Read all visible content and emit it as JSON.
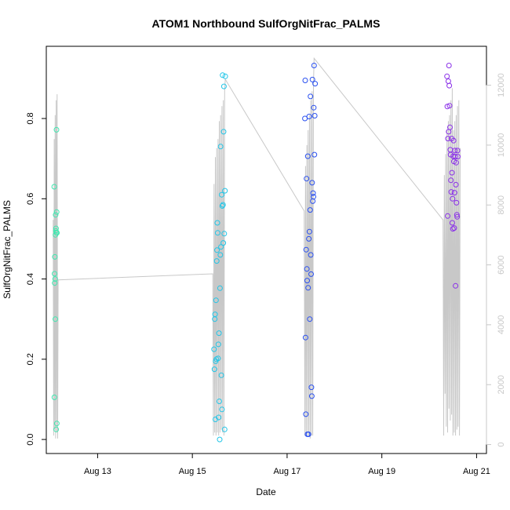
{
  "chart_data": {
    "type": "scatter",
    "title": "ATOM1 Northbound SulfOrgNitFrac_PALMS",
    "xlabel": "Date",
    "ylabel": "SulfOrgNitFrac_PALMS",
    "xlim": [
      "2016-08-11 22:00",
      "2016-08-21 05:00"
    ],
    "ylim": [
      -0.035,
      0.98
    ],
    "y2lim": [
      -300,
      13300
    ],
    "x_ticks": [
      {
        "value": "2016-08-13",
        "label": "Aug 13"
      },
      {
        "value": "2016-08-15",
        "label": "Aug 15"
      },
      {
        "value": "2016-08-17",
        "label": "Aug 17"
      },
      {
        "value": "2016-08-19",
        "label": "Aug 19"
      },
      {
        "value": "2016-08-21",
        "label": "Aug 21"
      }
    ],
    "y_ticks": [
      0.0,
      0.2,
      0.4,
      0.6,
      0.8
    ],
    "y_tick_labels": [
      "0.0",
      "0.2",
      "0.4",
      "0.6",
      "0.8"
    ],
    "y2_ticks": [
      0,
      2000,
      4000,
      6000,
      8000,
      10000,
      12000
    ],
    "y2_tick_labels": [
      "0",
      "2000",
      "4000",
      "6000",
      "8000",
      "10000",
      "12000"
    ],
    "y2_color": "#c8c8c8",
    "grid": false,
    "colors": {
      "flight1": "#3fe8b0",
      "flight2": "#22c6e8",
      "flight3": "#2a50f0",
      "flight4": "#8a30e8",
      "altitude": "#c8c8c8"
    },
    "series": [
      {
        "color_key": "flight1",
        "points": [
          [
            "2016-08-12 02:00",
            0.63
          ],
          [
            "2016-08-12 02:05",
            0.105
          ],
          [
            "2016-08-12 02:10",
            0.413
          ],
          [
            "2016-08-12 02:15",
            0.39
          ],
          [
            "2016-08-12 02:20",
            0.455
          ],
          [
            "2016-08-12 02:30",
            0.4
          ],
          [
            "2016-08-12 02:35",
            0.3
          ],
          [
            "2016-08-12 02:40",
            0.51
          ],
          [
            "2016-08-12 02:45",
            0.56
          ],
          [
            "2016-08-12 02:50",
            0.52
          ],
          [
            "2016-08-12 02:55",
            0.526
          ],
          [
            "2016-08-12 03:00",
            0.025
          ],
          [
            "2016-08-12 03:05",
            0.516
          ],
          [
            "2016-08-12 03:10",
            0.772
          ],
          [
            "2016-08-12 03:15",
            0.567
          ],
          [
            "2016-08-12 03:20",
            0.04
          ],
          [
            "2016-08-12 03:25",
            0.515
          ]
        ]
      },
      {
        "color_key": "flight2",
        "points": [
          [
            "2016-08-15 11:00",
            0.225
          ],
          [
            "2016-08-15 11:10",
            0.175
          ],
          [
            "2016-08-15 11:20",
            0.3
          ],
          [
            "2016-08-15 11:30",
            0.312
          ],
          [
            "2016-08-15 11:40",
            0.05
          ],
          [
            "2016-08-15 11:50",
            0.195
          ],
          [
            "2016-08-15 12:00",
            0.347
          ],
          [
            "2016-08-15 12:10",
            0.2
          ],
          [
            "2016-08-15 12:20",
            0.445
          ],
          [
            "2016-08-15 12:30",
            0.472
          ],
          [
            "2016-08-15 12:40",
            0.54
          ],
          [
            "2016-08-15 12:50",
            0.515
          ],
          [
            "2016-08-15 13:00",
            0.202
          ],
          [
            "2016-08-15 13:10",
            0.237
          ],
          [
            "2016-08-15 13:20",
            0.055
          ],
          [
            "2016-08-15 13:30",
            0.265
          ],
          [
            "2016-08-15 13:40",
            0.095
          ],
          [
            "2016-08-15 13:50",
            0.0
          ],
          [
            "2016-08-15 14:00",
            0.377
          ],
          [
            "2016-08-15 14:10",
            0.46
          ],
          [
            "2016-08-15 14:20",
            0.73
          ],
          [
            "2016-08-15 14:30",
            0.48
          ],
          [
            "2016-08-15 14:40",
            0.16
          ],
          [
            "2016-08-15 14:50",
            0.61
          ],
          [
            "2016-08-15 15:00",
            0.075
          ],
          [
            "2016-08-15 15:10",
            0.582
          ],
          [
            "2016-08-15 15:20",
            0.908
          ],
          [
            "2016-08-15 15:30",
            0.585
          ],
          [
            "2016-08-15 15:40",
            0.49
          ],
          [
            "2016-08-15 15:50",
            0.767
          ],
          [
            "2016-08-15 16:00",
            0.88
          ],
          [
            "2016-08-15 16:10",
            0.513
          ],
          [
            "2016-08-15 16:20",
            0.025
          ],
          [
            "2016-08-15 16:30",
            0.62
          ],
          [
            "2016-08-15 16:40",
            0.905
          ]
        ]
      },
      {
        "color_key": "flight3",
        "points": [
          [
            "2016-08-17 09:00",
            0.8
          ],
          [
            "2016-08-17 09:10",
            0.895
          ],
          [
            "2016-08-17 09:20",
            0.254
          ],
          [
            "2016-08-17 09:30",
            0.063
          ],
          [
            "2016-08-17 09:40",
            0.473
          ],
          [
            "2016-08-17 09:50",
            0.65
          ],
          [
            "2016-08-17 10:00",
            0.425
          ],
          [
            "2016-08-17 10:10",
            0.396
          ],
          [
            "2016-08-17 10:20",
            0.013
          ],
          [
            "2016-08-17 10:30",
            0.706
          ],
          [
            "2016-08-17 10:40",
            0.378
          ],
          [
            "2016-08-17 10:50",
            0.013
          ],
          [
            "2016-08-17 11:00",
            0.5
          ],
          [
            "2016-08-17 11:10",
            0.805
          ],
          [
            "2016-08-17 11:20",
            0.518
          ],
          [
            "2016-08-17 11:30",
            0.3
          ],
          [
            "2016-08-17 11:40",
            0.572
          ],
          [
            "2016-08-17 11:50",
            0.855
          ],
          [
            "2016-08-17 12:00",
            0.46
          ],
          [
            "2016-08-17 12:10",
            0.412
          ],
          [
            "2016-08-17 12:20",
            0.13
          ],
          [
            "2016-08-17 12:30",
            0.108
          ],
          [
            "2016-08-17 12:40",
            0.64
          ],
          [
            "2016-08-17 12:50",
            0.897
          ],
          [
            "2016-08-17 13:00",
            0.594
          ],
          [
            "2016-08-17 13:10",
            0.614
          ],
          [
            "2016-08-17 13:20",
            0.605
          ],
          [
            "2016-08-17 13:30",
            0.827
          ],
          [
            "2016-08-17 13:40",
            0.932
          ],
          [
            "2016-08-17 13:50",
            0.71
          ],
          [
            "2016-08-17 14:00",
            0.807
          ],
          [
            "2016-08-17 14:10",
            0.887
          ]
        ]
      },
      {
        "color_key": "flight4",
        "points": [
          [
            "2016-08-20 09:00",
            0.905
          ],
          [
            "2016-08-20 09:10",
            0.83
          ],
          [
            "2016-08-20 09:20",
            0.557
          ],
          [
            "2016-08-20 09:30",
            0.75
          ],
          [
            "2016-08-20 09:40",
            0.893
          ],
          [
            "2016-08-20 09:50",
            0.767
          ],
          [
            "2016-08-20 10:00",
            0.932
          ],
          [
            "2016-08-20 10:10",
            0.882
          ],
          [
            "2016-08-20 10:20",
            0.832
          ],
          [
            "2016-08-20 10:30",
            0.778
          ],
          [
            "2016-08-20 10:40",
            0.722
          ],
          [
            "2016-08-20 10:50",
            0.71
          ],
          [
            "2016-08-20 11:00",
            0.646
          ],
          [
            "2016-08-20 11:10",
            0.617
          ],
          [
            "2016-08-20 11:20",
            0.75
          ],
          [
            "2016-08-20 11:30",
            0.665
          ],
          [
            "2016-08-20 11:40",
            0.54
          ],
          [
            "2016-08-20 11:50",
            0.6
          ],
          [
            "2016-08-20 12:00",
            0.525
          ],
          [
            "2016-08-20 12:10",
            0.706
          ],
          [
            "2016-08-20 12:20",
            0.745
          ],
          [
            "2016-08-20 12:30",
            0.693
          ],
          [
            "2016-08-20 12:40",
            0.527
          ],
          [
            "2016-08-20 12:50",
            0.615
          ],
          [
            "2016-08-20 13:00",
            0.72
          ],
          [
            "2016-08-20 13:10",
            0.705
          ],
          [
            "2016-08-20 13:20",
            0.383
          ],
          [
            "2016-08-20 13:30",
            0.635
          ],
          [
            "2016-08-20 13:40",
            0.69
          ],
          [
            "2016-08-20 13:50",
            0.59
          ],
          [
            "2016-08-20 14:00",
            0.56
          ],
          [
            "2016-08-20 14:10",
            0.555
          ],
          [
            "2016-08-20 14:20",
            0.72
          ],
          [
            "2016-08-20 14:30",
            0.705
          ]
        ]
      }
    ],
    "altitude_series": {
      "axis": "y2",
      "points": [
        [
          "2016-08-12 01:30",
          7500
        ],
        [
          "2016-08-12 01:45",
          300
        ],
        [
          "2016-08-12 02:00",
          10200
        ],
        [
          "2016-08-12 02:15",
          500
        ],
        [
          "2016-08-12 02:30",
          11000
        ],
        [
          "2016-08-12 02:45",
          200
        ],
        [
          "2016-08-12 03:00",
          11500
        ],
        [
          "2016-08-12 03:15",
          400
        ],
        [
          "2016-08-12 03:30",
          11700
        ],
        [
          "2016-08-12 03:45",
          200
        ],
        [
          "2016-08-12 04:00",
          5500
        ],
        [
          "2016-08-15 10:20",
          5700
        ],
        [
          "2016-08-15 10:40",
          300
        ],
        [
          "2016-08-15 11:00",
          8700
        ],
        [
          "2016-08-15 11:20",
          400
        ],
        [
          "2016-08-15 11:40",
          9600
        ],
        [
          "2016-08-15 12:00",
          300
        ],
        [
          "2016-08-15 12:20",
          9900
        ],
        [
          "2016-08-15 12:40",
          400
        ],
        [
          "2016-08-15 13:00",
          10200
        ],
        [
          "2016-08-15 13:20",
          300
        ],
        [
          "2016-08-15 13:40",
          10800
        ],
        [
          "2016-08-15 14:00",
          400
        ],
        [
          "2016-08-15 14:20",
          11000
        ],
        [
          "2016-08-15 14:40",
          500
        ],
        [
          "2016-08-15 15:00",
          11300
        ],
        [
          "2016-08-15 15:20",
          400
        ],
        [
          "2016-08-15 15:40",
          11500
        ],
        [
          "2016-08-15 16:00",
          300
        ],
        [
          "2016-08-15 16:20",
          11800
        ],
        [
          "2016-08-15 16:40",
          12200
        ],
        [
          "2016-08-17 08:40",
          7800
        ],
        [
          "2016-08-17 09:00",
          300
        ],
        [
          "2016-08-17 09:20",
          9300
        ],
        [
          "2016-08-17 09:40",
          300
        ],
        [
          "2016-08-17 10:00",
          10000
        ],
        [
          "2016-08-17 10:20",
          300
        ],
        [
          "2016-08-17 10:40",
          10500
        ],
        [
          "2016-08-17 11:00",
          300
        ],
        [
          "2016-08-17 11:20",
          11000
        ],
        [
          "2016-08-17 11:40",
          200
        ],
        [
          "2016-08-17 12:00",
          11500
        ],
        [
          "2016-08-17 12:20",
          300
        ],
        [
          "2016-08-17 12:40",
          11800
        ],
        [
          "2016-08-17 13:00",
          300
        ],
        [
          "2016-08-17 13:20",
          12000
        ],
        [
          "2016-08-17 13:40",
          12900
        ],
        [
          "2016-08-20 07:00",
          7500
        ],
        [
          "2016-08-20 07:20",
          300
        ],
        [
          "2016-08-20 07:40",
          9000
        ],
        [
          "2016-08-20 08:00",
          1700
        ],
        [
          "2016-08-20 08:20",
          9700
        ],
        [
          "2016-08-20 08:40",
          600
        ],
        [
          "2016-08-20 09:00",
          10500
        ],
        [
          "2016-08-20 09:20",
          400
        ],
        [
          "2016-08-20 09:40",
          10800
        ],
        [
          "2016-08-20 10:00",
          1200
        ],
        [
          "2016-08-20 10:20",
          11000
        ],
        [
          "2016-08-20 10:40",
          800
        ],
        [
          "2016-08-20 11:00",
          11500
        ],
        [
          "2016-08-20 11:20",
          1000
        ],
        [
          "2016-08-20 11:40",
          11900
        ],
        [
          "2016-08-20 12:00",
          300
        ],
        [
          "2016-08-20 12:20",
          10500
        ],
        [
          "2016-08-20 12:40",
          400
        ],
        [
          "2016-08-20 13:00",
          10800
        ],
        [
          "2016-08-20 13:20",
          300
        ],
        [
          "2016-08-20 13:40",
          11000
        ],
        [
          "2016-08-20 14:00",
          500
        ],
        [
          "2016-08-20 14:20",
          11300
        ],
        [
          "2016-08-20 14:40",
          600
        ],
        [
          "2016-08-20 15:00",
          11500
        ],
        [
          "2016-08-20 15:20",
          300
        ],
        [
          "2016-08-20 15:40",
          9900
        ]
      ]
    }
  }
}
